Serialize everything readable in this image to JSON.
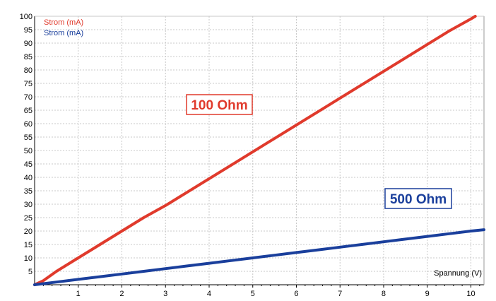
{
  "chart_data": {
    "type": "line",
    "title": "",
    "xlabel": "Spannung (V)",
    "ylabel": "",
    "xlim": [
      0,
      10.3
    ],
    "ylim": [
      0,
      100
    ],
    "x_ticks": [
      1,
      2,
      3,
      4,
      5,
      6,
      7,
      8,
      9,
      10
    ],
    "y_ticks": [
      5,
      10,
      15,
      20,
      25,
      30,
      35,
      40,
      45,
      50,
      55,
      60,
      65,
      70,
      75,
      80,
      85,
      90,
      95,
      100
    ],
    "grid": true,
    "legend_position": "top-left",
    "series": [
      {
        "name": "Strom (mA)",
        "color": "#e03a2c",
        "x": [
          0,
          0.2,
          0.5,
          1,
          1.5,
          2,
          2.5,
          3,
          3.5,
          4,
          4.5,
          5,
          5.5,
          6,
          6.5,
          7,
          7.5,
          8,
          8.5,
          9,
          9.5,
          10,
          10.1
        ],
        "y": [
          0,
          1.5,
          5,
          10,
          15,
          20,
          25,
          29.5,
          34.5,
          39.5,
          44.5,
          49.5,
          54.5,
          59.5,
          64.5,
          69.5,
          74.5,
          79.5,
          84.5,
          89.5,
          94.5,
          99,
          100
        ]
      },
      {
        "name": "Strom (mA)",
        "color": "#1a3f9c",
        "x": [
          0,
          0.5,
          1,
          1.5,
          2,
          2.5,
          3,
          3.5,
          4,
          4.5,
          5,
          5.5,
          6,
          6.5,
          7,
          7.5,
          8,
          8.5,
          9,
          9.5,
          10,
          10.3
        ],
        "y": [
          0,
          1,
          2,
          3,
          4,
          5,
          6,
          7,
          8,
          9,
          10,
          11,
          12,
          13,
          14,
          15,
          16,
          17,
          18,
          19,
          20,
          20.5
        ]
      }
    ],
    "annotations": [
      {
        "text": "100 Ohm",
        "color": "#e03a2c"
      },
      {
        "text": "500 Ohm",
        "color": "#1a3f9c"
      }
    ]
  }
}
